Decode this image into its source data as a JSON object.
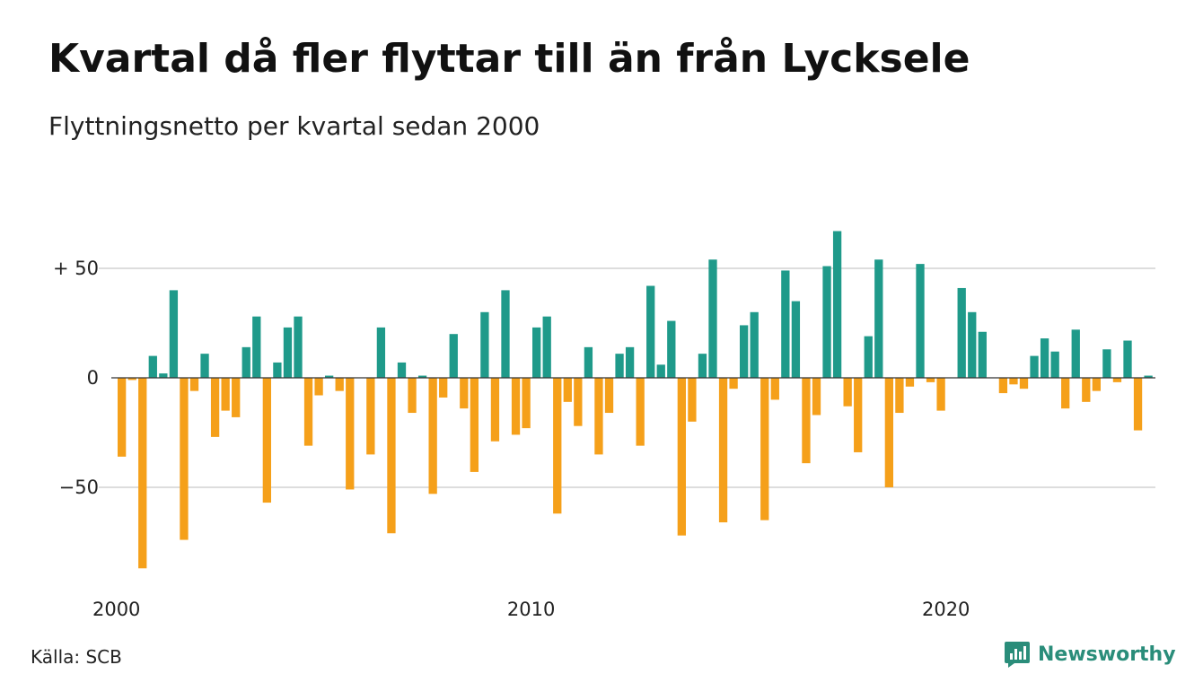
{
  "title": "Kvartal då fler flyttar till än från Lycksele",
  "subtitle": "Flyttningsnetto per kvartal sedan 2000",
  "source": "Källa: SCB",
  "brand": {
    "name": "Newsworthy",
    "icon": "newsworthy-logo-icon",
    "color": "#2a8d7a"
  },
  "colors": {
    "positive": "#1f9a8a",
    "negative": "#f5a01a",
    "grid": "#dddddd"
  },
  "chart_data": {
    "type": "bar",
    "title": "Kvartal då fler flyttar till än från Lycksele",
    "subtitle": "Flyttningsnetto per kvartal sedan 2000",
    "x_tick_labels": [
      "2000",
      "2010",
      "2020"
    ],
    "y_tick_labels": [
      {
        "value": 50,
        "label": "+ 50"
      },
      {
        "value": 0,
        "label": "0"
      },
      {
        "value": -50,
        "label": "−50"
      }
    ],
    "ylim": [
      -90,
      68
    ],
    "grid": true,
    "start": "2000 Q1",
    "values": [
      -36,
      -1,
      -87,
      10,
      2,
      40,
      -74,
      -6,
      11,
      -27,
      -15,
      -18,
      14,
      28,
      -57,
      7,
      23,
      28,
      -31,
      -8,
      1,
      -6,
      -51,
      0,
      -35,
      23,
      -71,
      7,
      -16,
      1,
      -53,
      -9,
      20,
      -14,
      -43,
      30,
      -29,
      40,
      -26,
      -23,
      23,
      28,
      -62,
      -11,
      -22,
      14,
      -35,
      -16,
      11,
      14,
      -31,
      42,
      6,
      26,
      -72,
      -20,
      11,
      54,
      -66,
      -5,
      24,
      30,
      -65,
      -10,
      49,
      35,
      -39,
      -17,
      51,
      67,
      -13,
      -34,
      19,
      54,
      -50,
      -16,
      -4,
      52,
      -2,
      -15,
      0,
      41,
      30,
      21,
      0,
      -7,
      -3,
      -5,
      10,
      18,
      12,
      -14,
      22,
      -11,
      -6,
      13,
      -2,
      17,
      -24,
      1
    ]
  }
}
